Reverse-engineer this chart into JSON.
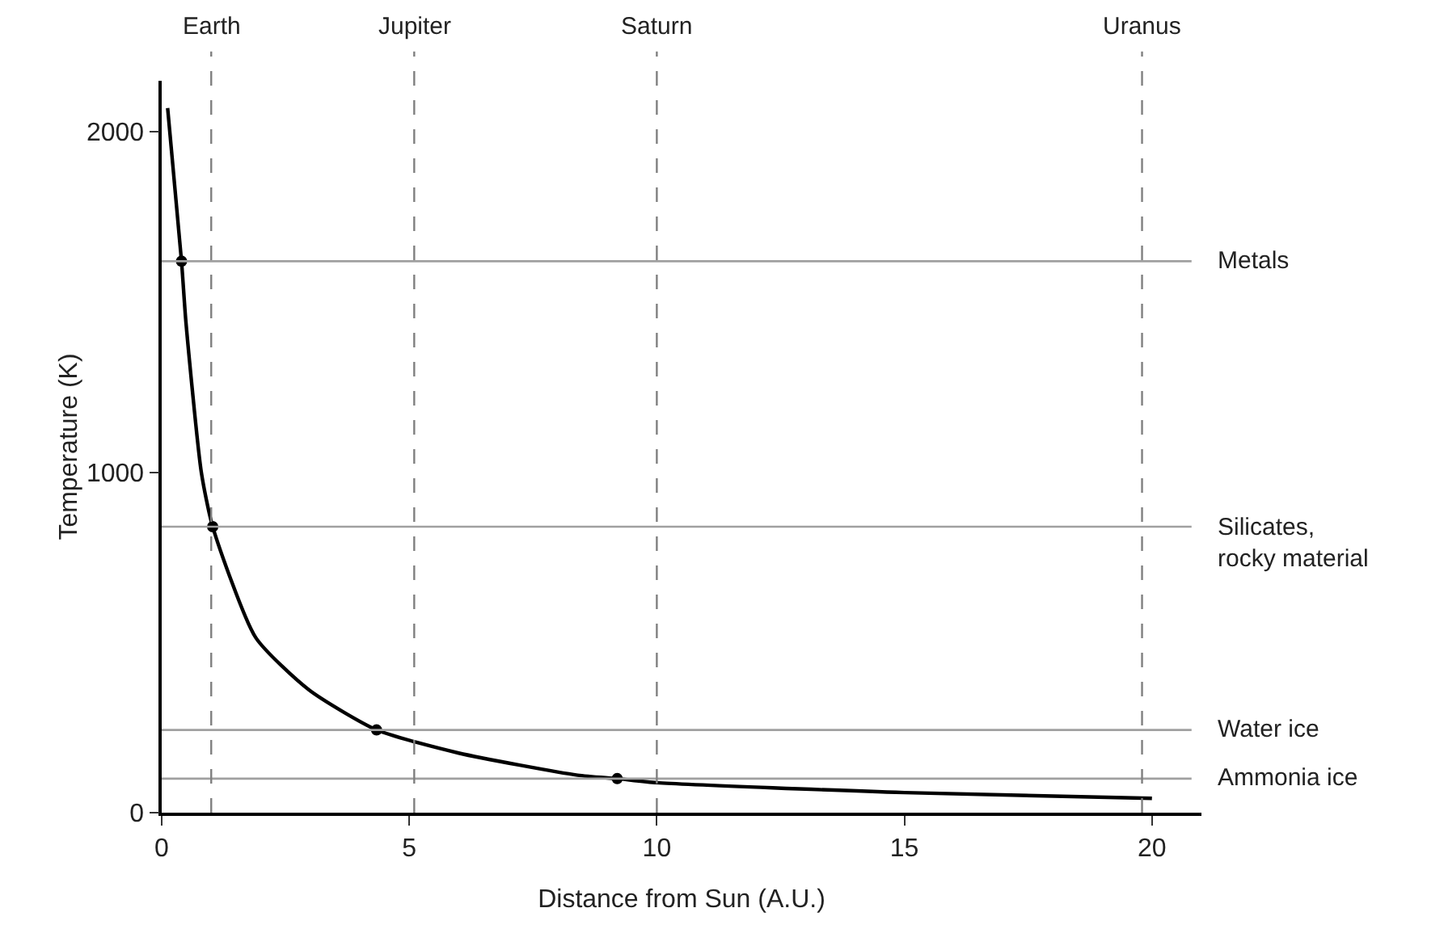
{
  "chart_data": {
    "type": "line",
    "xlabel": "Distance from Sun (A.U.)",
    "ylabel": "Temperature (K)",
    "xlim": [
      0,
      21
    ],
    "ylim": [
      0,
      2150
    ],
    "xticks": [
      0,
      5,
      10,
      15,
      20
    ],
    "yticks": [
      0,
      1000,
      2000
    ],
    "grid": false,
    "series": [
      {
        "color": "#000000",
        "marker": "none",
        "line_style": "solid",
        "x": [
          0.12,
          0.4,
          0.49,
          0.8,
          1.03,
          1.9,
          2.98,
          4.34,
          6,
          8.4,
          9.2,
          10,
          15,
          20
        ],
        "values": [
          2070,
          1620,
          1440,
          1000,
          840,
          514,
          360,
          243,
          175,
          110,
          100,
          88,
          59,
          42
        ]
      },
      {
        "type": "scatter",
        "color": "#000000",
        "marker": "circle",
        "x": [
          0.4,
          1.03,
          4.34,
          9.2
        ],
        "values": [
          1620,
          840,
          243,
          100
        ]
      }
    ],
    "ref_lines": [
      {
        "axis": "y",
        "value": 1620,
        "label": "Metals",
        "color": "#a0a0a0",
        "line_style": "solid"
      },
      {
        "axis": "y",
        "value": 840,
        "label": "Silicates,\nrocky material",
        "color": "#a0a0a0",
        "line_style": "solid"
      },
      {
        "axis": "y",
        "value": 243,
        "label": "Water ice",
        "color": "#a0a0a0",
        "line_style": "solid"
      },
      {
        "axis": "y",
        "value": 100,
        "label": "Ammonia ice",
        "color": "#a0a0a0",
        "line_style": "solid"
      },
      {
        "axis": "x",
        "value": 1,
        "label": "Earth",
        "color": "#808080",
        "line_style": "dashed"
      },
      {
        "axis": "x",
        "value": 5.1,
        "label": "Jupiter",
        "color": "#808080",
        "line_style": "dashed"
      },
      {
        "axis": "x",
        "value": 10,
        "label": "Saturn",
        "color": "#808080",
        "line_style": "dashed"
      },
      {
        "axis": "x",
        "value": 19.8,
        "label": "Uranus",
        "color": "#808080",
        "line_style": "dashed"
      }
    ]
  }
}
